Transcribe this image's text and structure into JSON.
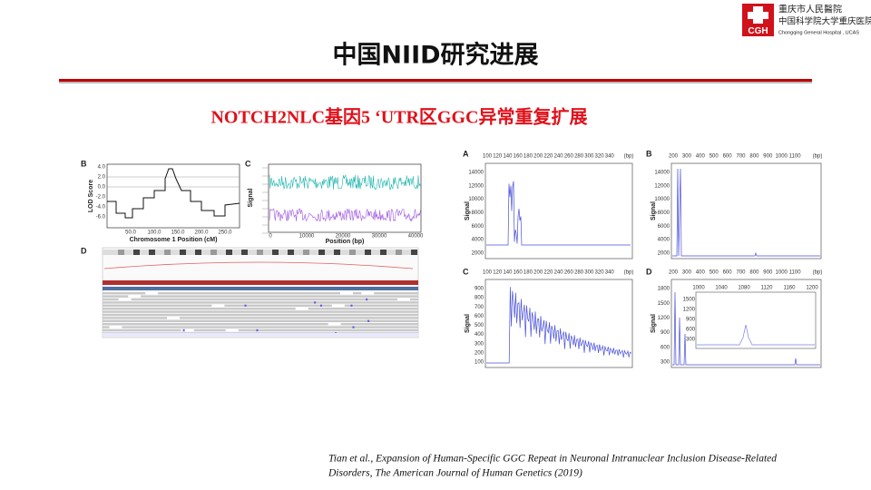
{
  "header": {
    "title": "中国NIID研究进展",
    "subtitle": "NOTCH2NLC基因5 ‘UTR区GGC异常重复扩展"
  },
  "logo": {
    "mark": "CGH",
    "name_line1": "重庆市人民醫院",
    "name_line2": "中国科学院大学重庆医院",
    "name_en": "Chongqing General Hospital , UCAS"
  },
  "left_figure": {
    "panel_b": {
      "label": "B",
      "y_title": "LOD Score",
      "y_ticks": [
        "4.0",
        "2.0",
        "0.0",
        "-2.0",
        "-4.0",
        "-6.0"
      ],
      "x_ticks": [
        "50.0",
        "100.0",
        "150.0",
        "200.0",
        "250.0"
      ],
      "x_title": "Chromosome 1 Position (cM)"
    },
    "panel_c": {
      "label": "C",
      "y_title": "Signal",
      "x_ticks": [
        "0",
        "10000",
        "20000",
        "30000",
        "40000"
      ],
      "x_title": "Position (bp)"
    },
    "panel_d": {
      "label": "D"
    }
  },
  "right_figure": {
    "panels": [
      {
        "label": "A",
        "x_ticks": [
          "100",
          "120",
          "140",
          "160",
          "180",
          "200",
          "220",
          "240",
          "260",
          "280",
          "300",
          "320",
          "340"
        ],
        "x_unit": "(bp)",
        "y_title": "Signal",
        "y_ticks": [
          "14000",
          "12000",
          "10000",
          "8000",
          "6000",
          "4000",
          "2000"
        ]
      },
      {
        "label": "B",
        "x_ticks": [
          "200",
          "300",
          "400",
          "500",
          "600",
          "700",
          "800",
          "900",
          "1000",
          "1100"
        ],
        "x_unit": "(bp)",
        "y_title": "Signal",
        "y_ticks": [
          "14000",
          "12000",
          "10000",
          "8000",
          "6000",
          "4000",
          "2000"
        ]
      },
      {
        "label": "C",
        "x_ticks": [
          "100",
          "120",
          "140",
          "160",
          "180",
          "200",
          "220",
          "240",
          "260",
          "280",
          "300",
          "320",
          "340"
        ],
        "x_unit": "(bp)",
        "y_title": "Signal",
        "y_ticks": [
          "900",
          "800",
          "700",
          "600",
          "500",
          "400",
          "300",
          "200",
          "100"
        ]
      },
      {
        "label": "D",
        "x_ticks": [
          "200",
          "300",
          "400",
          "500",
          "600",
          "700",
          "800",
          "900",
          "1000",
          "1100"
        ],
        "x_unit": "(bp)",
        "y_title": "Signal",
        "y_ticks": [
          "1800",
          "1500",
          "1200",
          "900",
          "600",
          "300"
        ]
      }
    ],
    "inset": {
      "x_ticks": [
        "1000",
        "1040",
        "1080",
        "1120",
        "1160",
        "1200"
      ],
      "y_ticks": [
        "1500",
        "1200",
        "900",
        "600",
        "300"
      ]
    }
  },
  "citation": {
    "line1": "Tian et al., Expansion of Human-Specific  GGC Repeat in Neuronal Intranuclear Inclusion Disease-Related",
    "line2": "Disorders, The American Journal of Human Genetics (2019)"
  }
}
